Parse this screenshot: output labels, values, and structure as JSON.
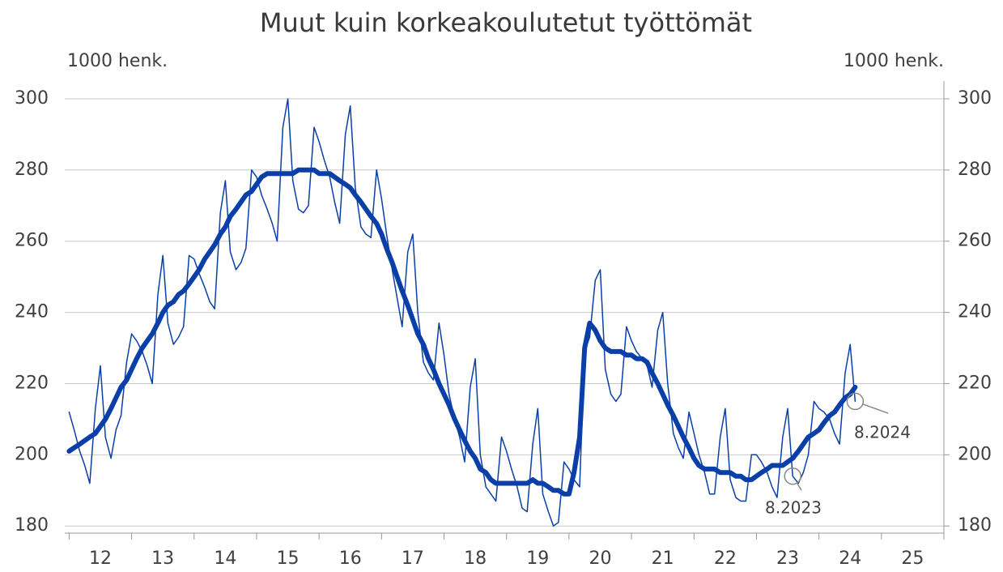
{
  "chart_data": {
    "type": "line",
    "title": "Muut kuin korkeakoulutetut työttömät",
    "ylabel": "1000 henk.",
    "y2label": "1000 henk.",
    "categories": [
      "12",
      "13",
      "14",
      "15",
      "16",
      "17",
      "18",
      "19",
      "20",
      "21",
      "22",
      "23",
      "24",
      "25"
    ],
    "x": [
      12.0,
      12.08,
      12.17,
      12.25,
      12.33,
      12.42,
      12.5,
      12.58,
      12.67,
      12.75,
      12.83,
      12.92,
      13.0,
      13.08,
      13.17,
      13.25,
      13.33,
      13.42,
      13.5,
      13.58,
      13.67,
      13.75,
      13.83,
      13.92,
      14.0,
      14.08,
      14.17,
      14.25,
      14.33,
      14.42,
      14.5,
      14.58,
      14.67,
      14.75,
      14.83,
      14.92,
      15.0,
      15.08,
      15.17,
      15.25,
      15.33,
      15.42,
      15.5,
      15.58,
      15.67,
      15.75,
      15.83,
      15.92,
      16.0,
      16.08,
      16.17,
      16.25,
      16.33,
      16.42,
      16.5,
      16.58,
      16.67,
      16.75,
      16.83,
      16.92,
      17.0,
      17.08,
      17.17,
      17.25,
      17.33,
      17.42,
      17.5,
      17.58,
      17.67,
      17.75,
      17.83,
      17.92,
      18.0,
      18.08,
      18.17,
      18.25,
      18.33,
      18.42,
      18.5,
      18.58,
      18.67,
      18.75,
      18.83,
      18.92,
      19.0,
      19.08,
      19.17,
      19.25,
      19.33,
      19.42,
      19.5,
      19.58,
      19.67,
      19.75,
      19.83,
      19.92,
      20.0,
      20.08,
      20.17,
      20.25,
      20.33,
      20.42,
      20.5,
      20.58,
      20.67,
      20.75,
      20.83,
      20.92,
      21.0,
      21.08,
      21.17,
      21.25,
      21.33,
      21.42,
      21.5,
      21.58,
      21.67,
      21.75,
      21.83,
      21.92,
      22.0,
      22.08,
      22.17,
      22.25,
      22.33,
      22.42,
      22.5,
      22.58,
      22.67,
      22.75,
      22.83,
      22.92,
      23.0,
      23.08,
      23.17,
      23.25,
      23.33,
      23.42,
      23.5,
      23.58,
      23.67,
      23.75,
      23.83,
      23.92,
      24.0,
      24.08,
      24.17,
      24.25,
      24.33,
      24.42,
      24.5,
      24.58
    ],
    "series": [
      {
        "color": "#0a3fa8",
        "linewidth": 1.5,
        "values": [
          212,
          207,
          201,
          197,
          192,
          213,
          225,
          205,
          199,
          207,
          211,
          226,
          234,
          232,
          229,
          225,
          220,
          245,
          256,
          237,
          231,
          233,
          236,
          256,
          255,
          251,
          247,
          243,
          241,
          268,
          277,
          257,
          252,
          254,
          258,
          280,
          278,
          273,
          269,
          265,
          260,
          292,
          300,
          277,
          269,
          268,
          270,
          292,
          288,
          283,
          278,
          271,
          265,
          290,
          298,
          275,
          264,
          262,
          261,
          280,
          272,
          262,
          252,
          244,
          236,
          257,
          262,
          240,
          226,
          223,
          221,
          237,
          228,
          217,
          210,
          205,
          198,
          219,
          227,
          200,
          191,
          189,
          187,
          205,
          201,
          196,
          191,
          185,
          184,
          203,
          213,
          189,
          184,
          180,
          181,
          198,
          196,
          193,
          191,
          229,
          233,
          249,
          252,
          224,
          217,
          215,
          217,
          236,
          232,
          229,
          227,
          225,
          219,
          235,
          240,
          220,
          206,
          202,
          199,
          212,
          206,
          200,
          195,
          189,
          189,
          205,
          213,
          193,
          188,
          187,
          187,
          200,
          200,
          198,
          195,
          191,
          188,
          205,
          213,
          194,
          192,
          195,
          200,
          215,
          213,
          212,
          210,
          206,
          203,
          223,
          231,
          215
        ]
      },
      {
        "color": "#0a3fa8",
        "linewidth": 6,
        "values": [
          201,
          202,
          203,
          204,
          205,
          206,
          208,
          210,
          213,
          216,
          219,
          221,
          224,
          227,
          230,
          232,
          234,
          237,
          240,
          242,
          243,
          245,
          246,
          248,
          250,
          252,
          255,
          257,
          259,
          262,
          264,
          267,
          269,
          271,
          273,
          274,
          276,
          278,
          279,
          279,
          279,
          279,
          279,
          279,
          280,
          280,
          280,
          280,
          279,
          279,
          279,
          278,
          277,
          276,
          275,
          273,
          271,
          269,
          267,
          265,
          262,
          258,
          254,
          250,
          246,
          242,
          238,
          234,
          231,
          227,
          224,
          220,
          217,
          214,
          210,
          207,
          204,
          201,
          199,
          196,
          195,
          193,
          192,
          192,
          192,
          192,
          192,
          192,
          192,
          193,
          192,
          192,
          191,
          190,
          190,
          189,
          189,
          195,
          205,
          230,
          237,
          235,
          232,
          230,
          229,
          229,
          229,
          228,
          228,
          227,
          227,
          226,
          223,
          220,
          217,
          214,
          211,
          208,
          205,
          202,
          199,
          197,
          196,
          196,
          196,
          195,
          195,
          195,
          194,
          194,
          193,
          193,
          194,
          195,
          196,
          197,
          197,
          197,
          198,
          199,
          201,
          203,
          205,
          206,
          207,
          209,
          211,
          212,
          214,
          216,
          217,
          219
        ]
      }
    ],
    "xlim": [
      11.93,
      26
    ],
    "xticks": [
      12,
      13,
      14,
      15,
      16,
      17,
      18,
      19,
      20,
      21,
      22,
      23,
      24,
      25,
      26
    ],
    "ylim": [
      178,
      305
    ],
    "yticks": [
      180,
      200,
      220,
      240,
      260,
      280,
      300
    ],
    "y2lim": [
      178,
      305
    ],
    "y2ticks": [
      180,
      200,
      220,
      240,
      260,
      280,
      300
    ],
    "grid": true,
    "annotations": [
      "8.2023",
      "8.2024"
    ]
  }
}
